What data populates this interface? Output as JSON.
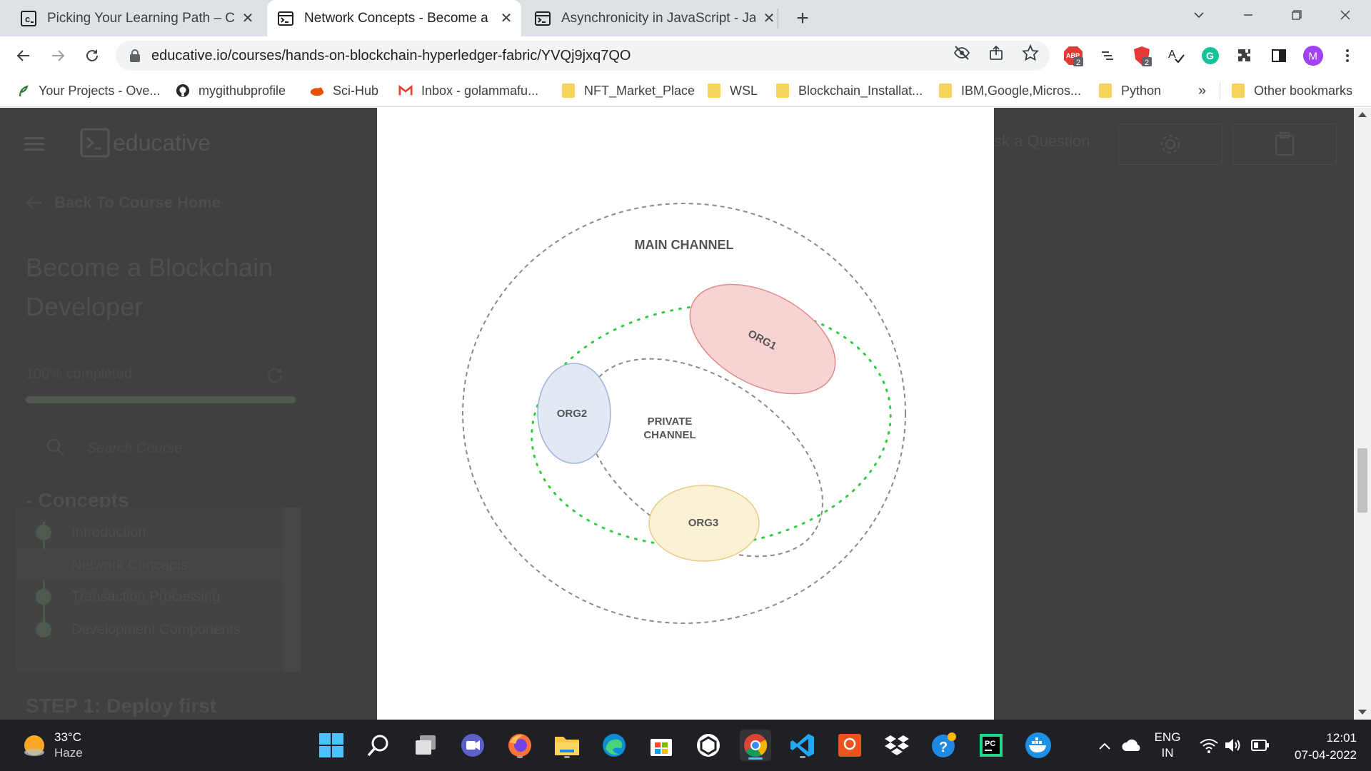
{
  "tabs": [
    {
      "title": "Picking Your Learning Path – Cod",
      "icon": "educative-c-icon"
    },
    {
      "title": "Network Concepts - Become a Bl",
      "icon": "terminal-icon"
    },
    {
      "title": "Asynchronicity in JavaScript - Jav",
      "icon": "terminal-icon"
    }
  ],
  "address": {
    "url": "educative.io/courses/hands-on-blockchain-hyperledger-fabric/YVQj9jxq7QO"
  },
  "extensions": {
    "adblock_badge": "2",
    "ext_badge": "2",
    "profile_initial": "M"
  },
  "bookmarks": {
    "items": [
      "Your Projects - Ove...",
      "mygithubprofile",
      "Sci-Hub",
      "Inbox - golammafu...",
      "NFT_Market_Place",
      "WSL",
      "Blockchain_Installat...",
      "IBM,Google,Micros...",
      "Python"
    ],
    "overflow": "»",
    "other": "Other bookmarks"
  },
  "site": {
    "brand": "educative",
    "back_link": "Back To Course Home",
    "course_title_line1": "Become a Blockchain",
    "course_title_line2": "Developer",
    "progress_text": "100% completed",
    "progress": 1.0,
    "search_placeholder": "Search Course",
    "section_title": "- Concepts",
    "lessons": [
      "Introduction",
      "Network Concepts",
      "Transaction Processing",
      "Development Components"
    ],
    "next_step": "STEP 1: Deploy first",
    "ask_question": "sk a Question"
  },
  "diagram": {
    "main_channel": "MAIN CHANNEL",
    "private_channel_line1": "PRIVATE",
    "private_channel_line2": "CHANNEL",
    "org1": "ORG1",
    "org2": "ORG2",
    "org3": "ORG3"
  },
  "taskbar": {
    "temperature": "33°C",
    "weather": "Haze",
    "lang_line1": "ENG",
    "lang_line2": "IN",
    "time": "12:01",
    "date": "07-04-2022"
  }
}
